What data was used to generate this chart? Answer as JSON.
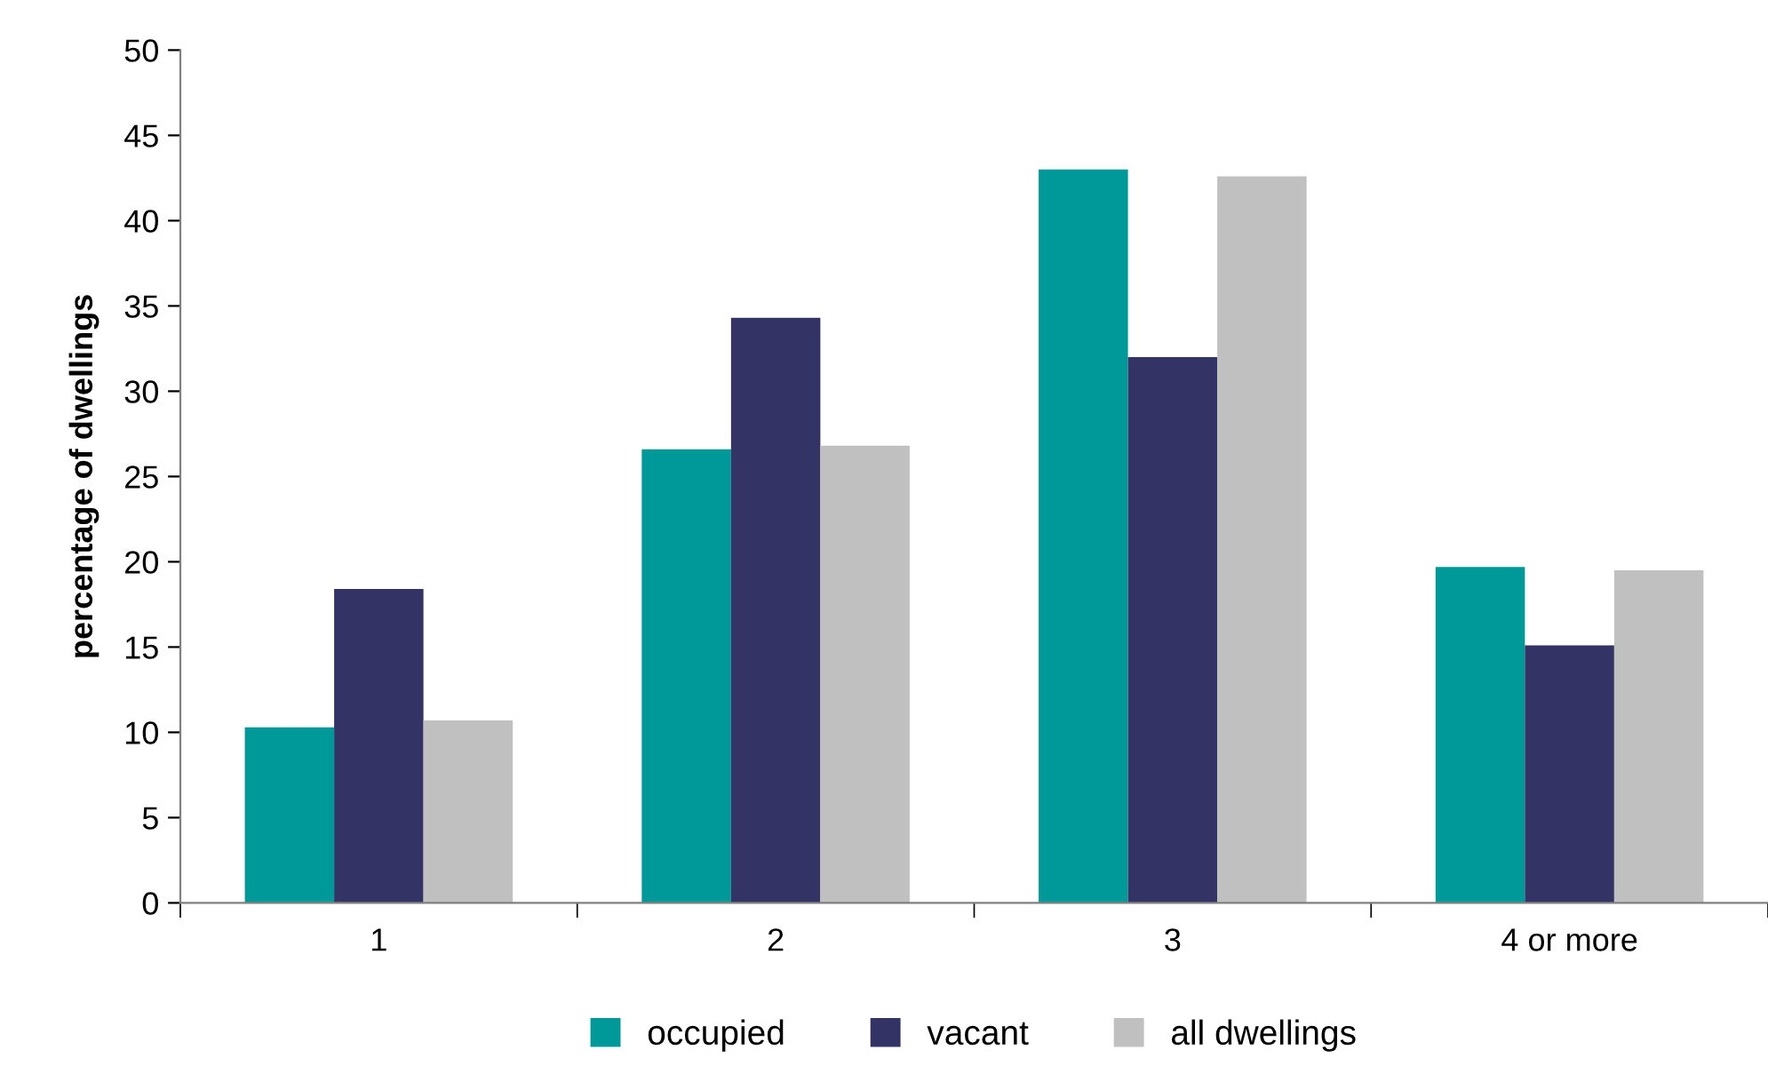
{
  "chart_data": {
    "type": "bar",
    "ylabel": "percentage of dwellings",
    "categories": [
      "1",
      "2",
      "3",
      "4 or more"
    ],
    "series": [
      {
        "name": "occupied",
        "color": "#009999",
        "values": [
          10.3,
          26.6,
          43.0,
          19.7
        ]
      },
      {
        "name": "vacant",
        "color": "#333366",
        "values": [
          18.4,
          34.3,
          32.0,
          15.1
        ]
      },
      {
        "name": "all dwellings",
        "color": "#c0c0c0",
        "values": [
          10.7,
          26.8,
          42.6,
          19.5
        ]
      }
    ],
    "ylim": [
      0,
      50
    ],
    "yticks": [
      0,
      5,
      10,
      15,
      20,
      25,
      30,
      35,
      40,
      45,
      50
    ],
    "grid": false,
    "legend": "bottom"
  }
}
